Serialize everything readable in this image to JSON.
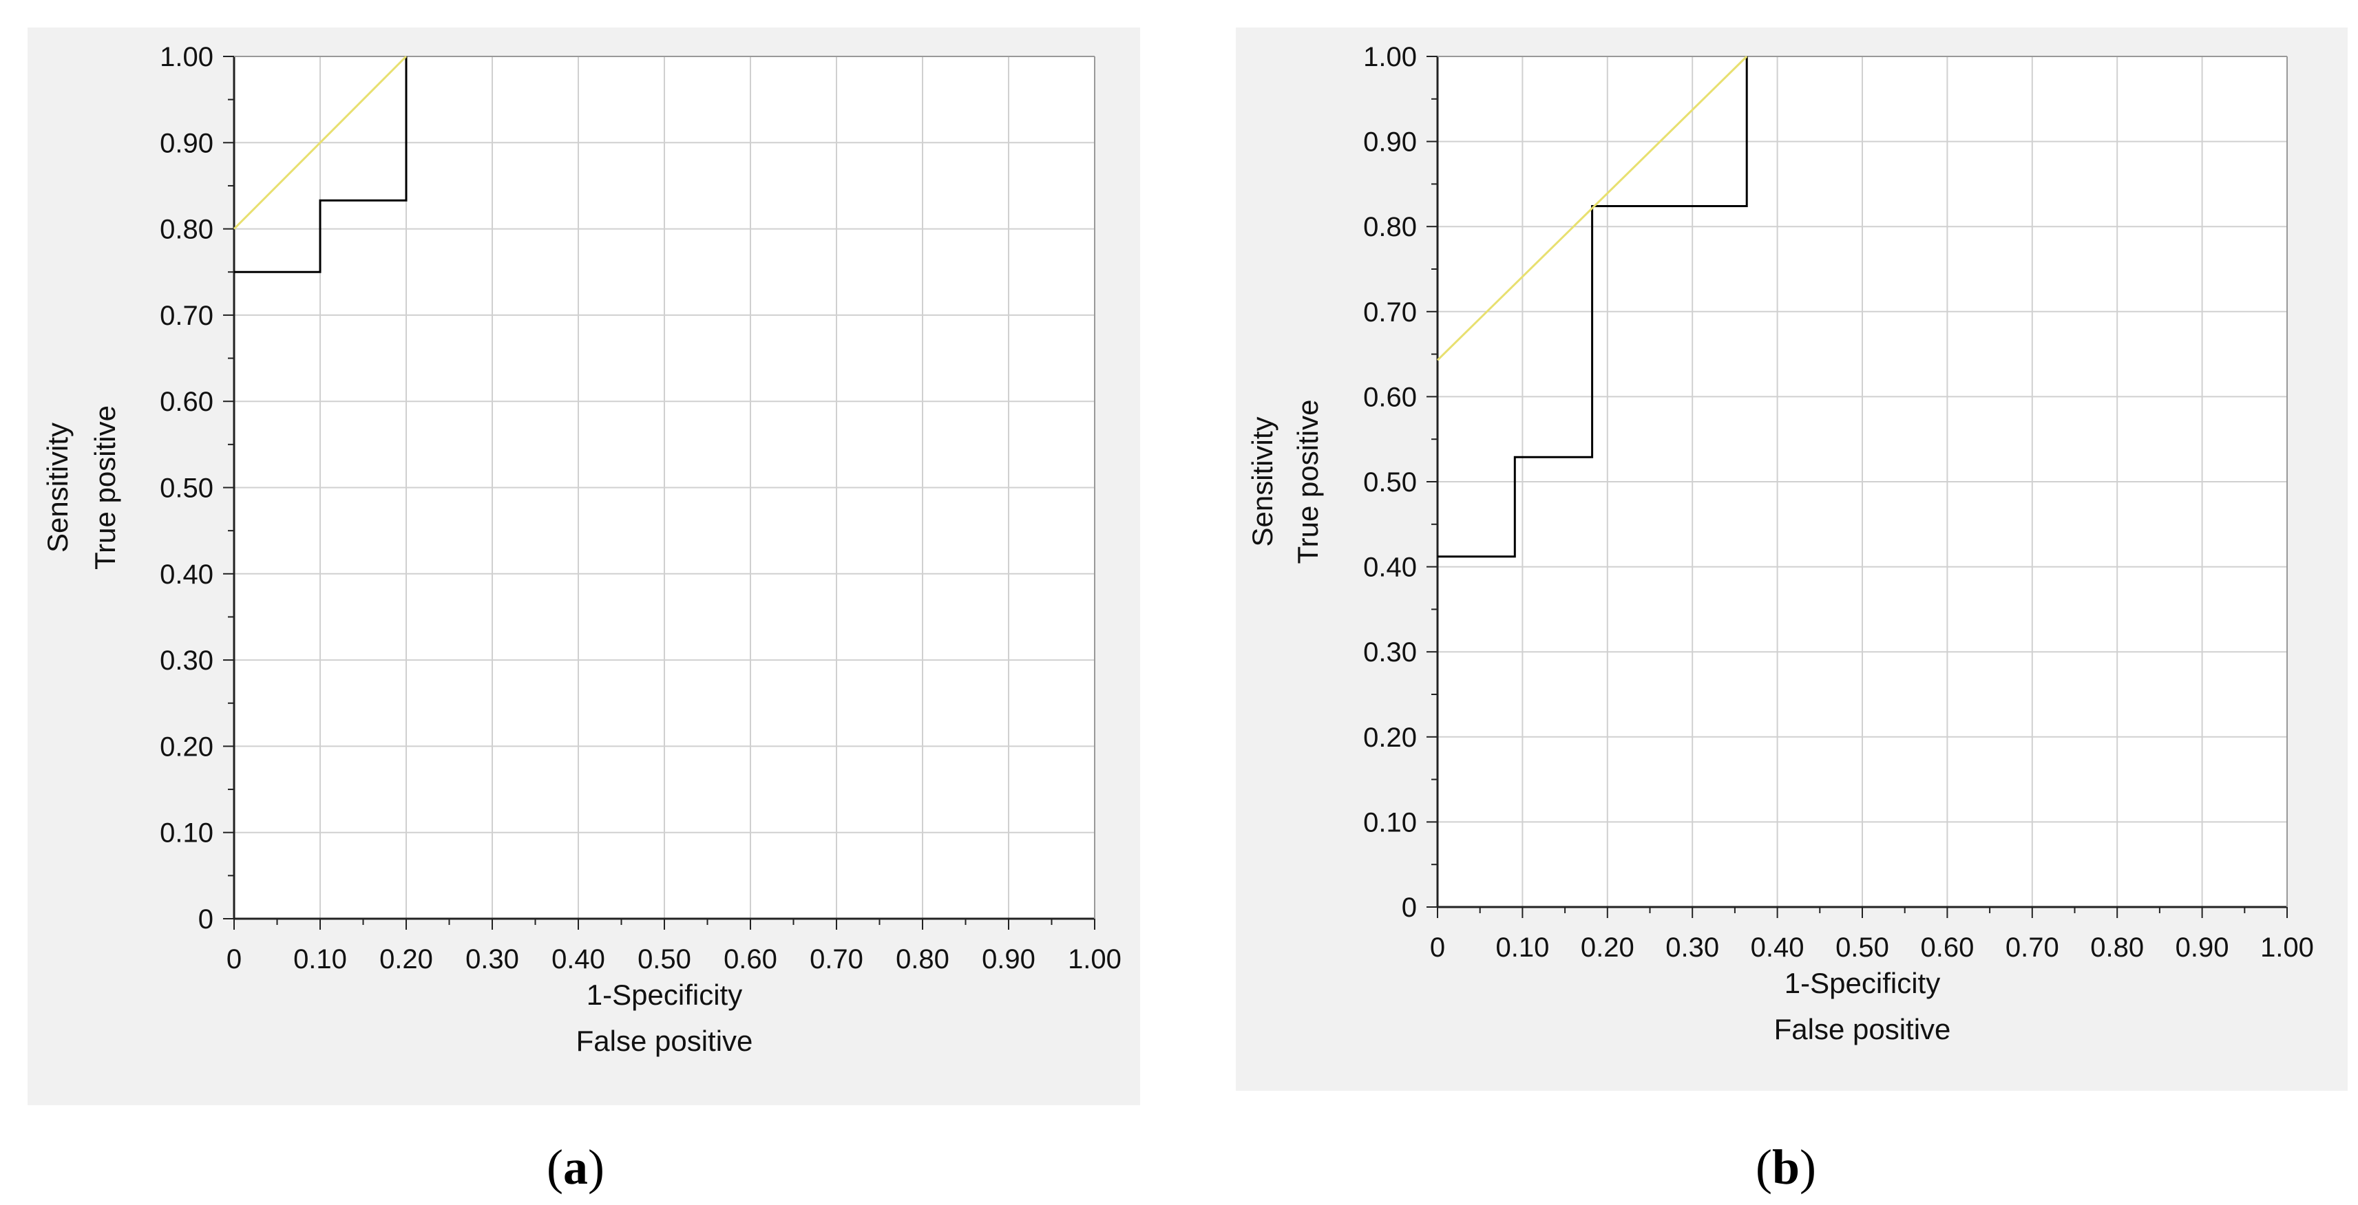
{
  "chart_data": [
    {
      "type": "line",
      "caption_letter": "a",
      "xlabel": "1-Specificity",
      "xlabel2": "False positive",
      "ylabel": "Sensitivity",
      "ylabel2": "True positive",
      "xlim": [
        0,
        1
      ],
      "ylim": [
        0,
        1
      ],
      "x_ticks": [
        "0",
        "0.10",
        "0.20",
        "0.30",
        "0.40",
        "0.50",
        "0.60",
        "0.70",
        "0.80",
        "0.90",
        "1.00"
      ],
      "y_ticks": [
        "0",
        "0.10",
        "0.20",
        "0.30",
        "0.40",
        "0.50",
        "0.60",
        "0.70",
        "0.80",
        "0.90",
        "1.00"
      ],
      "grid": true,
      "series": [
        {
          "style": "step",
          "color": "#000000",
          "x": [
            0,
            0.1,
            0.1,
            0.2,
            0.2
          ],
          "y": [
            0.75,
            0.75,
            0.833,
            0.833,
            1.0
          ]
        },
        {
          "style": "line",
          "color": "#e8e070",
          "x": [
            0,
            0.2
          ],
          "y": [
            0.8,
            1.0
          ]
        }
      ]
    },
    {
      "type": "line",
      "caption_letter": "b",
      "xlabel": "1-Specificity",
      "xlabel2": "False positive",
      "ylabel": "Sensitivity",
      "ylabel2": "True positive",
      "xlim": [
        0,
        1
      ],
      "ylim": [
        0,
        1
      ],
      "x_ticks": [
        "0",
        "0.10",
        "0.20",
        "0.30",
        "0.40",
        "0.50",
        "0.60",
        "0.70",
        "0.80",
        "0.90",
        "1.00"
      ],
      "y_ticks": [
        "0",
        "0.10",
        "0.20",
        "0.30",
        "0.40",
        "0.50",
        "0.60",
        "0.70",
        "0.80",
        "0.90",
        "1.00"
      ],
      "grid": true,
      "series": [
        {
          "style": "step",
          "color": "#000000",
          "x": [
            0,
            0.091,
            0.091,
            0.182,
            0.182,
            0.364,
            0.364
          ],
          "y": [
            0.412,
            0.412,
            0.529,
            0.529,
            0.824,
            0.824,
            1.0
          ]
        },
        {
          "style": "line",
          "color": "#e8e070",
          "x": [
            0,
            0.364
          ],
          "y": [
            0.643,
            1.0
          ]
        }
      ]
    }
  ]
}
